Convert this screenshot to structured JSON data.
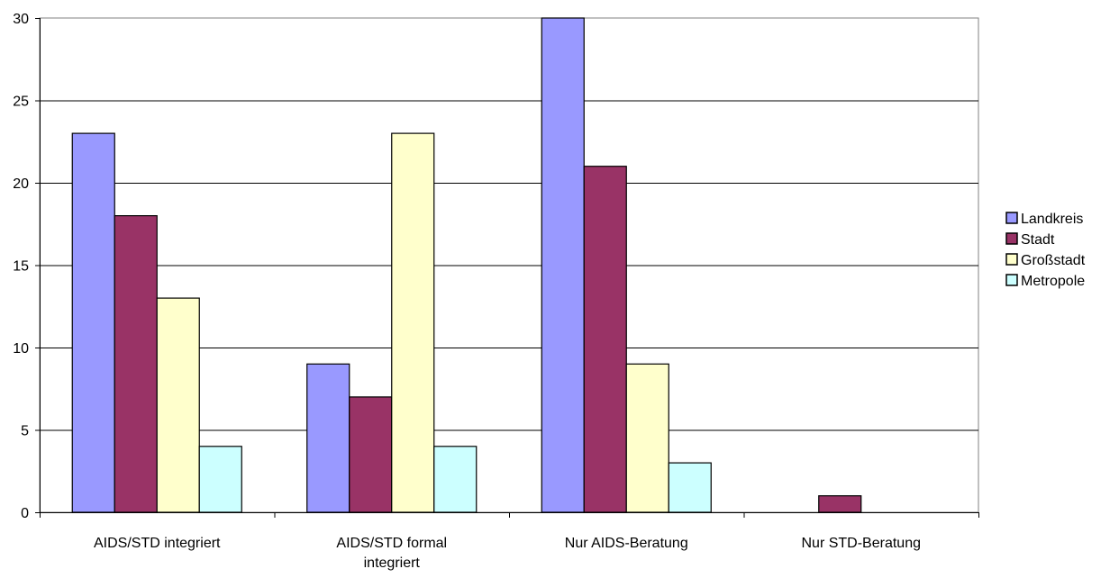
{
  "chart_data": {
    "type": "bar",
    "categories": [
      [
        "AIDS/STD integriert"
      ],
      [
        "AIDS/STD formal",
        "integriert"
      ],
      [
        "Nur AIDS-Beratung"
      ],
      [
        "Nur STD-Beratung"
      ]
    ],
    "series": [
      {
        "name": "Landkreis",
        "color": "#9999ff",
        "values": [
          23,
          9,
          30,
          0
        ]
      },
      {
        "name": "Stadt",
        "color": "#993366",
        "values": [
          18,
          7,
          21,
          1
        ]
      },
      {
        "name": "Großstadt",
        "color": "#ffffcc",
        "values": [
          13,
          23,
          9,
          0
        ]
      },
      {
        "name": "Metropole",
        "color": "#ccffff",
        "values": [
          4,
          4,
          3,
          0
        ]
      }
    ],
    "ylim": [
      0,
      30
    ],
    "yticks": [
      0,
      5,
      10,
      15,
      20,
      25,
      30
    ],
    "grid": true,
    "legend_position": "right",
    "title": "",
    "xlabel": "",
    "ylabel": ""
  }
}
